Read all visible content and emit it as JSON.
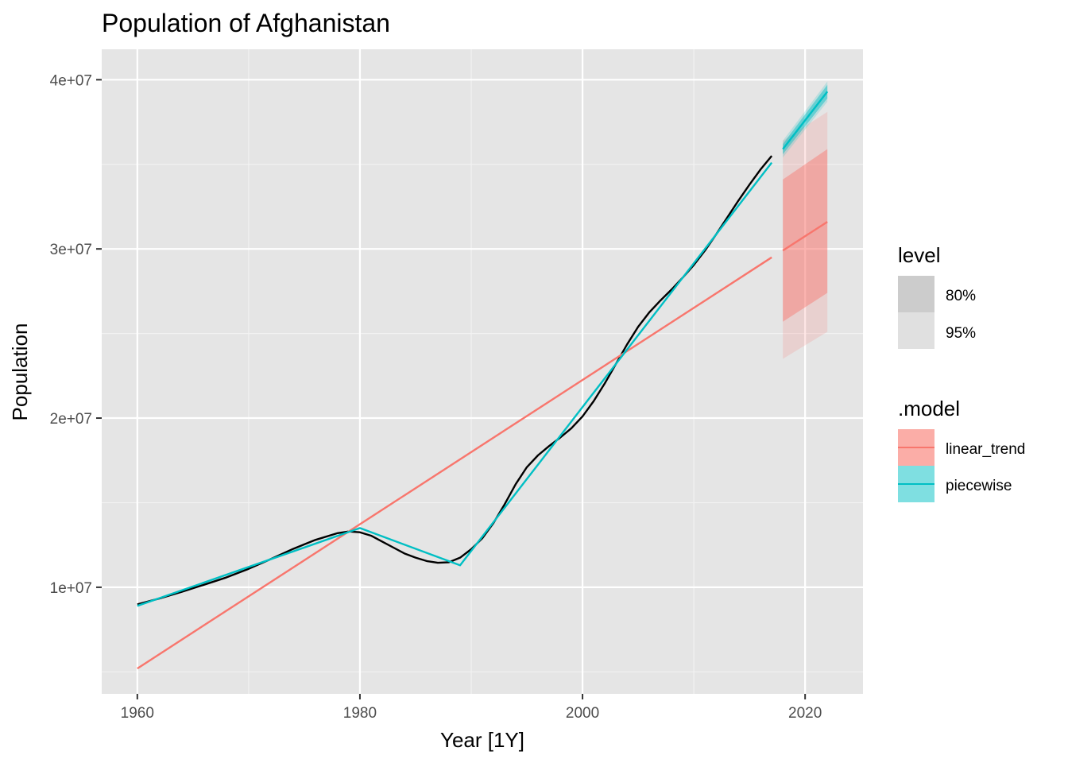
{
  "chart_data": {
    "type": "line",
    "title": "Population of Afghanistan",
    "xlabel": "Year [1Y]",
    "ylabel": "Population",
    "xlim": [
      1956.8,
      2025.2
    ],
    "ylim": [
      3700000,
      41800000
    ],
    "x_ticks": [
      1960,
      1980,
      2000,
      2020
    ],
    "y_ticks": [
      10000000,
      20000000,
      30000000,
      40000000
    ],
    "y_tick_labels": [
      "1e+07",
      "2e+07",
      "3e+07",
      "4e+07"
    ],
    "grid": true,
    "legend_position": "right",
    "colors": {
      "panel": "#e5e5e5",
      "grid": "#ffffff",
      "observed": "#000000",
      "linear_trend": "#f8766d",
      "piecewise": "#00bfc4",
      "legend_80": "#cccccc",
      "legend_95": "#e0e0e0"
    },
    "observed": {
      "x": [
        1960,
        1962,
        1964,
        1966,
        1968,
        1970,
        1972,
        1974,
        1976,
        1978,
        1979,
        1980,
        1981,
        1982,
        1983,
        1984,
        1985,
        1986,
        1987,
        1988,
        1989,
        1990,
        1991,
        1992,
        1993,
        1994,
        1995,
        1996,
        1997,
        1998,
        1999,
        2000,
        2001,
        2002,
        2003,
        2004,
        2005,
        2006,
        2007,
        2008,
        2009,
        2010,
        2011,
        2012,
        2013,
        2014,
        2015,
        2016,
        2017
      ],
      "y": [
        8990000,
        9340000,
        9730000,
        10150000,
        10580000,
        11090000,
        11670000,
        12270000,
        12800000,
        13200000,
        13300000,
        13250000,
        13050000,
        12700000,
        12350000,
        12000000,
        11750000,
        11550000,
        11450000,
        11480000,
        11750000,
        12250000,
        12900000,
        13800000,
        14900000,
        16100000,
        17100000,
        17800000,
        18350000,
        18850000,
        19400000,
        20100000,
        21000000,
        22050000,
        23200000,
        24350000,
        25400000,
        26250000,
        26950000,
        27600000,
        28300000,
        29050000,
        29900000,
        30850000,
        31850000,
        32850000,
        33800000,
        34700000,
        35500000
      ]
    },
    "series": [
      {
        "name": "linear_trend",
        "fit": {
          "x": [
            1960,
            2017
          ],
          "y": [
            5200000,
            29500000
          ]
        },
        "forecast": {
          "x": [
            2018,
            2022
          ],
          "mean": [
            29900000,
            31600000
          ],
          "lo80": [
            25700000,
            27400000
          ],
          "hi80": [
            34100000,
            35900000
          ],
          "lo95": [
            23500000,
            25100000
          ],
          "hi95": [
            36400000,
            38100000
          ]
        }
      },
      {
        "name": "piecewise",
        "fit": {
          "x": [
            1960,
            1980,
            1989,
            2017
          ],
          "y": [
            8900000,
            13500000,
            11300000,
            35100000
          ]
        },
        "forecast": {
          "x": [
            2018,
            2022
          ],
          "mean": [
            35900000,
            39300000
          ],
          "lo80": [
            35600000,
            38900000
          ],
          "hi80": [
            36200000,
            39700000
          ],
          "lo95": [
            35400000,
            38700000
          ],
          "hi95": [
            36400000,
            39900000
          ]
        }
      }
    ],
    "legend": {
      "level": {
        "title": "level",
        "items": [
          "80%",
          "95%"
        ]
      },
      "model": {
        "title": ".model",
        "items": [
          "linear_trend",
          "piecewise"
        ]
      }
    }
  }
}
